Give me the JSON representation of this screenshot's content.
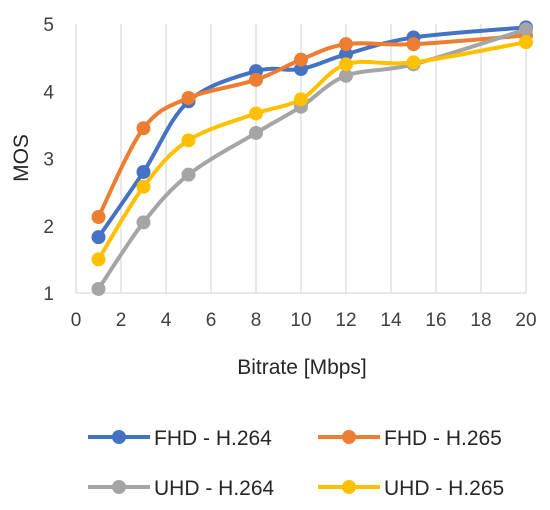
{
  "chart_data": {
    "type": "line",
    "xlabel": "Bitrate [Mbps]",
    "ylabel": "MOS",
    "xlim": [
      0,
      20
    ],
    "ylim": [
      1,
      5
    ],
    "xticks": [
      0,
      2,
      4,
      6,
      8,
      10,
      12,
      14,
      16,
      18,
      20
    ],
    "yticks": [
      1,
      2,
      3,
      4,
      5
    ],
    "grid": "vertical",
    "legend": "bottom",
    "x": [
      1,
      3,
      5,
      8,
      10,
      12,
      15,
      20
    ],
    "series": [
      {
        "name": "FHD - H.264",
        "color": "#4472C4",
        "values": [
          1.83,
          2.8,
          3.85,
          4.3,
          4.33,
          4.55,
          4.8,
          4.95
        ]
      },
      {
        "name": "FHD - H.265",
        "color": "#ED7D31",
        "values": [
          2.13,
          3.45,
          3.9,
          4.17,
          4.47,
          4.7,
          4.7,
          4.83
        ]
      },
      {
        "name": "UHD - H.264",
        "color": "#A5A5A5",
        "values": [
          1.06,
          2.05,
          2.76,
          3.38,
          3.77,
          4.23,
          4.4,
          4.92
        ]
      },
      {
        "name": "UHD - H.265",
        "color": "#FFC000",
        "values": [
          1.5,
          2.58,
          3.27,
          3.67,
          3.88,
          4.4,
          4.43,
          4.73
        ]
      }
    ]
  }
}
